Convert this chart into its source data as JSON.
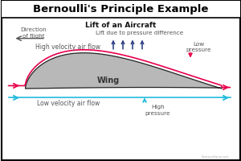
{
  "title": "Bernoulli's Principle Example",
  "subtitle": "Lift of an Aircraft",
  "wing_label": "Wing",
  "bg_color": "#ffffff",
  "border_color": "#000000",
  "wing_fill": "#b8b8b8",
  "wing_edge": "#222222",
  "high_vel_color": "#e8004a",
  "low_vel_color": "#22bbdd",
  "lift_arrow_color": "#334488",
  "pressure_arrow_up_color": "#22bbdd",
  "pressure_arrow_down_color": "#e8004a",
  "text_color": "#555555",
  "title_fontsize": 9.5,
  "subtitle_fontsize": 6.5,
  "label_fontsize": 5.5,
  "annotation_fontsize": 5.2,
  "xlim": [
    0,
    10
  ],
  "ylim": [
    0,
    6.67
  ]
}
